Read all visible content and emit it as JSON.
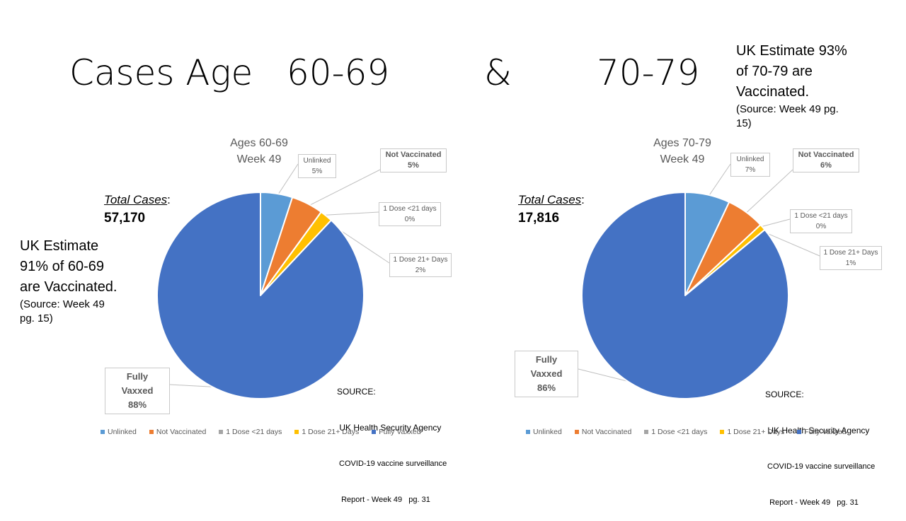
{
  "heading": {
    "part1": "Cases Age   60-69",
    "amp": "&",
    "part2": "70-79"
  },
  "right_estimate": {
    "line1": "UK Estimate 93%",
    "line2": "of 70-79 are",
    "line3": "Vaccinated.",
    "source1": "(Source: Week 49 pg.",
    "source2": "15)"
  },
  "left_estimate": {
    "line1": "UK Estimate",
    "line2": "91% of 60-69",
    "line3": "are Vaccinated.",
    "source1": "(Source: Week 49",
    "source2": "pg. 15)"
  },
  "source_note": {
    "line1": "SOURCE:",
    "line2": " UK Health Security Agency",
    "line3": " COVID-19 vaccine surveillance",
    "line4": "  Report - Week 49   pg. 31"
  },
  "colors": {
    "Unlinked": "#5B9BD5",
    "Not Vaccinated": "#ED7D31",
    "1 Dose <21 days": "#A5A5A5",
    "1 Dose 21+ Days": "#FFC000",
    "Fully Vaxxed": "#4472C4"
  },
  "chart_data": [
    {
      "type": "pie",
      "title": "Ages 60-69",
      "subtitle": "Week 49",
      "total_label": "Total Cases",
      "total_colon": ":",
      "total_value": "57,170",
      "categories": [
        "Unlinked",
        "Not Vaccinated",
        "1 Dose <21 days",
        "1 Dose 21+ Days",
        "Fully Vaxxed"
      ],
      "values": [
        5,
        5,
        0,
        2,
        88
      ],
      "labels": [
        "5%",
        "5%",
        "0%",
        "2%",
        "88%"
      ],
      "legend_placement": "bottom"
    },
    {
      "type": "pie",
      "title": "Ages 70-79",
      "subtitle": "Week 49",
      "total_label": "Total Cases",
      "total_colon": ":",
      "total_value": "17,816",
      "categories": [
        "Unlinked",
        "Not Vaccinated",
        "1 Dose <21 days",
        "1 Dose 21+ Days",
        "Fully Vaxxed"
      ],
      "values": [
        7,
        6,
        0,
        1,
        86
      ],
      "labels": [
        "7%",
        "6%",
        "0%",
        "1%",
        "86%"
      ],
      "legend_placement": "bottom"
    }
  ]
}
